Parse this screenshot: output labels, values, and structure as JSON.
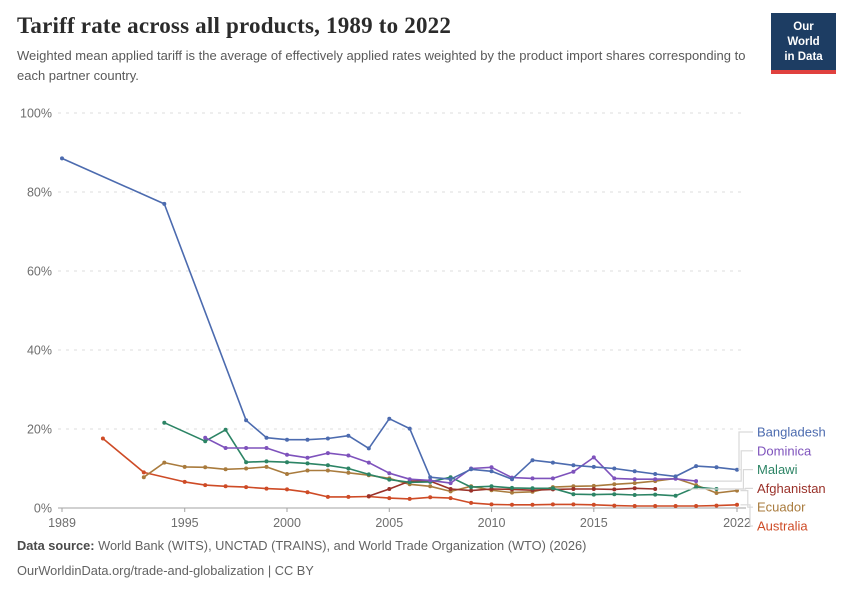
{
  "header": {
    "title": "Tariff rate across all products, 1989 to 2022",
    "subtitle": "Weighted mean applied tariff is the average of effectively applied rates weighted by the product import shares corresponding to each partner country."
  },
  "logo": {
    "line1": "Our World",
    "line2": "in Data",
    "bg_color": "#1d3d63",
    "accent_color": "#e0413e"
  },
  "chart_data": {
    "type": "line",
    "title": "Tariff rate across all products, 1989 to 2022",
    "xlabel": "",
    "ylabel": "Weighted mean applied tariff",
    "unit": "%",
    "x_range": [
      1989,
      2022
    ],
    "ylim": [
      0,
      100
    ],
    "grid": true,
    "legend_position": "right",
    "y_tick_values": [
      0,
      20,
      40,
      60,
      80,
      100
    ],
    "y_tick_labels": [
      "0%",
      "20%",
      "40%",
      "60%",
      "80%",
      "100%"
    ],
    "x_tick_values": [
      1989,
      1995,
      2000,
      2005,
      2010,
      2015,
      2022
    ],
    "x_tick_labels": [
      "1989",
      "1995",
      "2000",
      "2005",
      "2010",
      "2015",
      "2022"
    ],
    "series": [
      {
        "name": "Bangladesh",
        "color": "#4C6BAF",
        "points": [
          [
            1989,
            88.5
          ],
          [
            1994,
            77.0
          ],
          [
            1998,
            22.2
          ],
          [
            1999,
            17.8
          ],
          [
            2000,
            17.3
          ],
          [
            2001,
            17.3
          ],
          [
            2002,
            17.6
          ],
          [
            2003,
            18.3
          ],
          [
            2004,
            15.1
          ],
          [
            2005,
            22.6
          ],
          [
            2006,
            20.1
          ],
          [
            2007,
            7.8
          ],
          [
            2008,
            7.3
          ],
          [
            2009,
            9.8
          ],
          [
            2010,
            9.3
          ],
          [
            2011,
            7.3
          ],
          [
            2012,
            12.1
          ],
          [
            2013,
            11.5
          ],
          [
            2014,
            10.8
          ],
          [
            2015,
            10.4
          ],
          [
            2016,
            10.0
          ],
          [
            2017,
            9.3
          ],
          [
            2018,
            8.6
          ],
          [
            2019,
            8.0
          ],
          [
            2020,
            10.6
          ],
          [
            2021,
            10.3
          ],
          [
            2022,
            9.7
          ]
        ]
      },
      {
        "name": "Dominica",
        "color": "#7E52BC",
        "points": [
          [
            1996,
            17.8
          ],
          [
            1997,
            15.2
          ],
          [
            1998,
            15.2
          ],
          [
            1999,
            15.2
          ],
          [
            2000,
            13.5
          ],
          [
            2001,
            12.7
          ],
          [
            2002,
            13.9
          ],
          [
            2003,
            13.3
          ],
          [
            2004,
            11.5
          ],
          [
            2005,
            8.8
          ],
          [
            2006,
            7.3
          ],
          [
            2007,
            7.0
          ],
          [
            2008,
            6.3
          ],
          [
            2009,
            10.0
          ],
          [
            2010,
            10.3
          ],
          [
            2011,
            7.7
          ],
          [
            2012,
            7.5
          ],
          [
            2013,
            7.5
          ],
          [
            2014,
            9.2
          ],
          [
            2015,
            12.8
          ],
          [
            2016,
            7.5
          ],
          [
            2017,
            7.3
          ],
          [
            2018,
            7.3
          ],
          [
            2019,
            7.4
          ],
          [
            2020,
            6.8
          ]
        ]
      },
      {
        "name": "Malawi",
        "color": "#2C8465",
        "points": [
          [
            1994,
            21.6
          ],
          [
            1996,
            16.9
          ],
          [
            1997,
            19.8
          ],
          [
            1998,
            11.6
          ],
          [
            1999,
            11.8
          ],
          [
            2000,
            11.6
          ],
          [
            2001,
            11.3
          ],
          [
            2002,
            10.8
          ],
          [
            2003,
            10.0
          ],
          [
            2004,
            8.5
          ],
          [
            2005,
            7.2
          ],
          [
            2006,
            6.5
          ],
          [
            2007,
            6.6
          ],
          [
            2008,
            7.8
          ],
          [
            2009,
            5.3
          ],
          [
            2010,
            5.5
          ],
          [
            2011,
            5.1
          ],
          [
            2012,
            5.0
          ],
          [
            2013,
            5.0
          ],
          [
            2014,
            3.5
          ],
          [
            2015,
            3.4
          ],
          [
            2016,
            3.5
          ],
          [
            2017,
            3.3
          ],
          [
            2018,
            3.4
          ],
          [
            2019,
            3.1
          ],
          [
            2020,
            5.3
          ],
          [
            2021,
            4.8
          ]
        ]
      },
      {
        "name": "Afghanistan",
        "color": "#9A3129",
        "points": [
          [
            2004,
            3.0
          ],
          [
            2005,
            4.8
          ],
          [
            2006,
            6.8
          ],
          [
            2007,
            6.8
          ],
          [
            2008,
            4.8
          ],
          [
            2009,
            4.4
          ],
          [
            2010,
            4.8
          ],
          [
            2011,
            4.7
          ],
          [
            2012,
            4.5
          ],
          [
            2013,
            4.7
          ],
          [
            2014,
            4.8
          ],
          [
            2015,
            4.8
          ],
          [
            2016,
            4.7
          ],
          [
            2017,
            5.0
          ],
          [
            2018,
            4.8
          ]
        ]
      },
      {
        "name": "Ecuador",
        "color": "#A97B3D",
        "points": [
          [
            1993,
            7.8
          ],
          [
            1994,
            11.5
          ],
          [
            1995,
            10.4
          ],
          [
            1996,
            10.3
          ],
          [
            1997,
            9.8
          ],
          [
            1998,
            10.0
          ],
          [
            1999,
            10.4
          ],
          [
            2000,
            8.6
          ],
          [
            2001,
            9.5
          ],
          [
            2002,
            9.5
          ],
          [
            2003,
            8.9
          ],
          [
            2004,
            8.3
          ],
          [
            2005,
            7.5
          ],
          [
            2006,
            6.0
          ],
          [
            2007,
            5.5
          ],
          [
            2008,
            4.2
          ],
          [
            2009,
            5.5
          ],
          [
            2010,
            4.5
          ],
          [
            2011,
            3.9
          ],
          [
            2012,
            4.1
          ],
          [
            2013,
            5.3
          ],
          [
            2014,
            5.5
          ],
          [
            2015,
            5.6
          ],
          [
            2016,
            6.0
          ],
          [
            2017,
            6.3
          ],
          [
            2018,
            6.8
          ],
          [
            2019,
            7.5
          ],
          [
            2020,
            5.8
          ],
          [
            2021,
            3.8
          ],
          [
            2022,
            4.4
          ]
        ]
      },
      {
        "name": "Australia",
        "color": "#CE4B26",
        "points": [
          [
            1991,
            17.6
          ],
          [
            1993,
            9.0
          ],
          [
            1995,
            6.6
          ],
          [
            1996,
            5.8
          ],
          [
            1997,
            5.5
          ],
          [
            1998,
            5.3
          ],
          [
            1999,
            4.9
          ],
          [
            2000,
            4.7
          ],
          [
            2001,
            4.0
          ],
          [
            2002,
            2.8
          ],
          [
            2003,
            2.8
          ],
          [
            2004,
            2.9
          ],
          [
            2005,
            2.5
          ],
          [
            2006,
            2.3
          ],
          [
            2007,
            2.7
          ],
          [
            2008,
            2.5
          ],
          [
            2009,
            1.3
          ],
          [
            2010,
            0.9
          ],
          [
            2011,
            0.8
          ],
          [
            2012,
            0.8
          ],
          [
            2013,
            0.9
          ],
          [
            2014,
            0.9
          ],
          [
            2015,
            0.8
          ],
          [
            2016,
            0.6
          ],
          [
            2017,
            0.5
          ],
          [
            2018,
            0.5
          ],
          [
            2019,
            0.5
          ],
          [
            2020,
            0.5
          ],
          [
            2021,
            0.6
          ],
          [
            2022,
            0.8
          ]
        ]
      }
    ]
  },
  "legend": {
    "entries": [
      {
        "label": "Bangladesh",
        "color": "#4C6BAF"
      },
      {
        "label": "Dominica",
        "color": "#7E52BC"
      },
      {
        "label": "Malawi",
        "color": "#2C8465"
      },
      {
        "label": "Afghanistan",
        "color": "#9A3129"
      },
      {
        "label": "Ecuador",
        "color": "#A97B3D"
      },
      {
        "label": "Australia",
        "color": "#CE4B26"
      }
    ]
  },
  "footer": {
    "source_label": "Data source:",
    "source_text": "World Bank (WITS), UNCTAD (TRAINS), and World Trade Organization (WTO) (2026)",
    "link_line": "OurWorldinData.org/trade-and-globalization | CC BY"
  }
}
